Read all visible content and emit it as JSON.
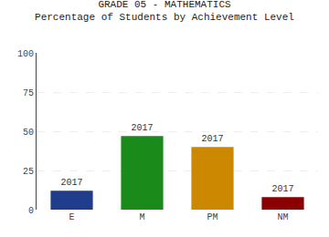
{
  "chart_data": {
    "type": "bar",
    "title": "GRADE 05 - MATHEMATICS",
    "subtitle": "Percentage of Students by Achievement Level",
    "categories": [
      "E",
      "M",
      "PM",
      "NM"
    ],
    "values": [
      12,
      47,
      40,
      8
    ],
    "colors": [
      "#1f3d8a",
      "#1a8a1a",
      "#cc8800",
      "#8b0000"
    ],
    "annotations": [
      "2017",
      "2017",
      "2017",
      "2017"
    ],
    "ylim": [
      0,
      100
    ],
    "yticks": [
      0,
      25,
      50,
      75,
      100
    ],
    "grid": true
  }
}
